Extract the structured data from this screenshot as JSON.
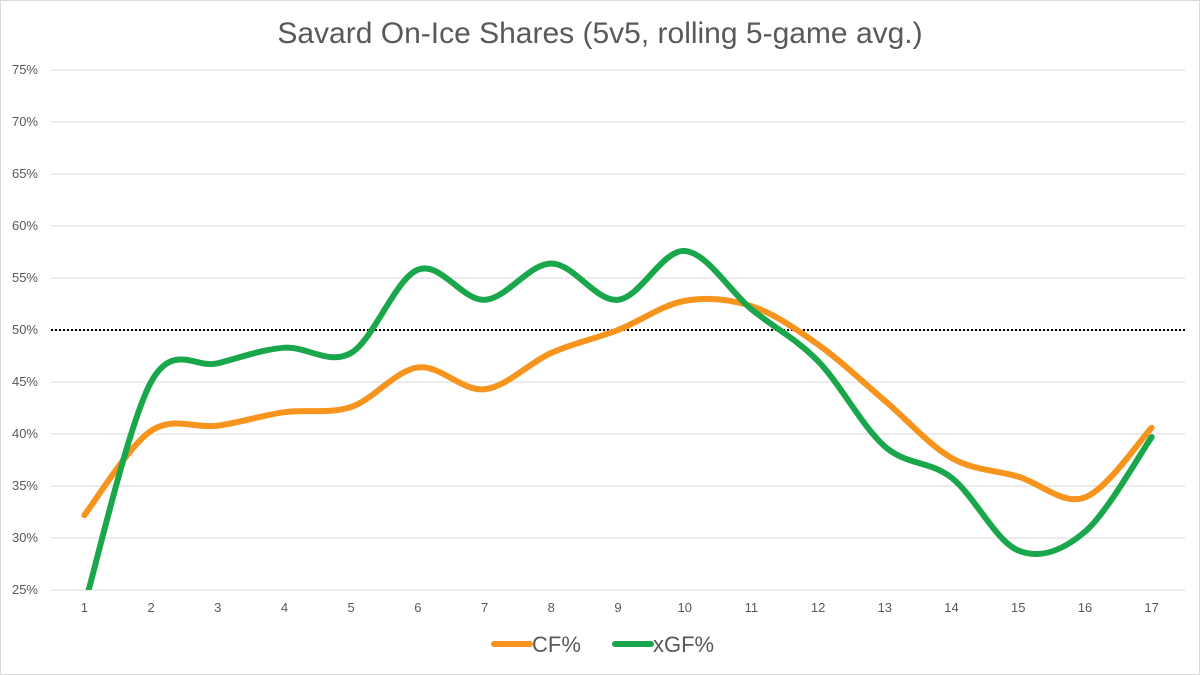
{
  "chart_data": {
    "type": "line",
    "title": "Savard On-Ice Shares (5v5, rolling 5-game avg.)",
    "xlabel": "",
    "ylabel": "",
    "x": [
      "1",
      "2",
      "3",
      "4",
      "5",
      "6",
      "7",
      "8",
      "9",
      "10",
      "11",
      "12",
      "13",
      "14",
      "15",
      "16",
      "17"
    ],
    "y_ticks": [
      "25%",
      "30%",
      "35%",
      "40%",
      "45%",
      "50%",
      "55%",
      "60%",
      "65%",
      "70%",
      "75%"
    ],
    "ylim": [
      25,
      75
    ],
    "grid": true,
    "reference_line": 50,
    "legend_position": "bottom",
    "series": [
      {
        "name": "CF%",
        "color": "#f7941d",
        "values": [
          32.2,
          40.3,
          40.8,
          42.1,
          42.6,
          46.4,
          44.3,
          47.8,
          50.0,
          52.8,
          52.3,
          48.6,
          43.2,
          37.7,
          35.9,
          33.9,
          40.6
        ]
      },
      {
        "name": "xGF%",
        "color": "#1aa64a",
        "values": [
          23.5,
          45.0,
          46.8,
          48.3,
          47.8,
          55.8,
          52.9,
          56.4,
          52.9,
          57.6,
          52.0,
          47.0,
          38.8,
          35.8,
          28.8,
          30.6,
          39.7
        ]
      }
    ]
  }
}
